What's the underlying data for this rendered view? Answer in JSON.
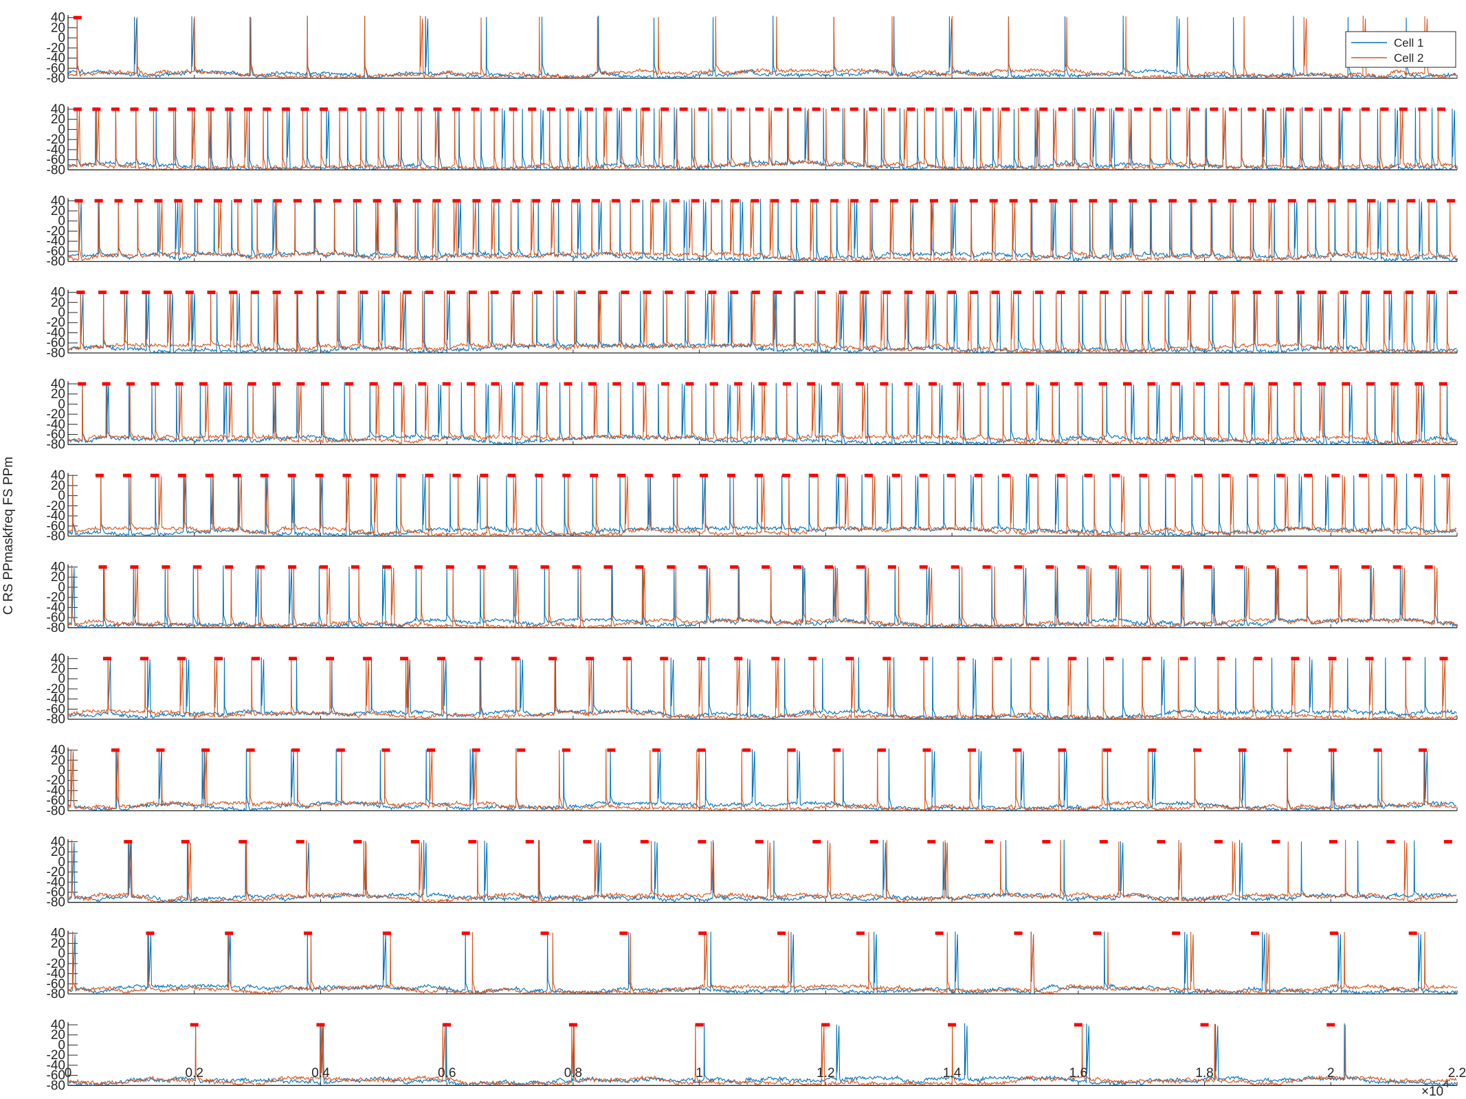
{
  "figure": {
    "ylabel": "C RS PPmaskfreq FS PPm",
    "x_exponent_label": "×10",
    "x_exponent_power": "4"
  },
  "chart_data": {
    "type": "line",
    "x_range": [
      0,
      22000
    ],
    "x_ticks": [
      0,
      2000,
      4000,
      6000,
      8000,
      10000,
      12000,
      14000,
      16000,
      18000,
      20000,
      22000
    ],
    "x_tick_labels": [
      "0",
      "0.2",
      "0.4",
      "0.6",
      "0.8",
      "1",
      "1.2",
      "1.4",
      "1.6",
      "1.8",
      "2",
      "2.2"
    ],
    "y_range": [
      -80,
      45
    ],
    "y_ticks": [
      -80,
      -60,
      -40,
      -20,
      0,
      20,
      40
    ],
    "y_tick_labels": [
      "-80",
      "-60",
      "-40",
      "-20",
      "0",
      "20",
      "40"
    ],
    "legend": {
      "placement": "top-right",
      "entries": [
        "Cell 1",
        "Cell 2"
      ]
    },
    "series": [
      {
        "name": "Cell 1",
        "color": "#0072BD"
      },
      {
        "name": "Cell 2",
        "color": "#D95319"
      }
    ],
    "mask_color": "#FF0000",
    "panels": [
      {
        "row": 1,
        "mask_freq": 0.01,
        "spike_period": 930,
        "mask_marks": [
          150
        ]
      },
      {
        "row": 2,
        "mask_freq": 3.5,
        "spike_period": 300,
        "mask_marks": [
          150,
          450,
          750,
          1050,
          1350,
          1650,
          1950,
          2250,
          2550,
          2850,
          3150,
          3450,
          3750,
          4050,
          4350,
          4650,
          4950,
          5250,
          5550,
          5850,
          6150,
          6450,
          6750,
          7050,
          7350,
          7650,
          7950,
          8250,
          8550,
          8850,
          9150,
          9450,
          9750,
          10050,
          10350,
          10650,
          10950,
          11250,
          11550,
          11850,
          12150,
          12450,
          12750,
          13050,
          13350,
          13650,
          13950,
          14250,
          14550,
          14850,
          15150,
          15450,
          15750,
          16050,
          16350,
          16650,
          16950,
          17250,
          17550,
          17850,
          18150,
          18450,
          18750,
          19050,
          19350,
          19650,
          19950,
          20250,
          20550,
          20850,
          21150,
          21450,
          21750
        ]
      },
      {
        "row": 3,
        "mask_freq": 3.2,
        "spike_period": 315,
        "mask_marks": [
          170,
          485,
          800,
          1115,
          1430,
          1745,
          2060,
          2375,
          2690,
          3005,
          3320,
          3635,
          3950,
          4265,
          4580,
          4895,
          5210,
          5525,
          5840,
          6155,
          6470,
          6785,
          7100,
          7415,
          7730,
          8045,
          8360,
          8675,
          8990,
          9305,
          9620,
          9935,
          10250,
          10565,
          10880,
          11195,
          11510,
          11825,
          12140,
          12455,
          12770,
          13085,
          13400,
          13715,
          14030,
          14345,
          14660,
          14975,
          15290,
          15605,
          15920,
          16235,
          16550,
          16865,
          17180,
          17495,
          17810,
          18125,
          18440,
          18755,
          19070,
          19385,
          19700,
          20015,
          20330,
          20645,
          20960,
          21275,
          21590,
          21905
        ]
      },
      {
        "row": 4,
        "mask_freq": 2.9,
        "spike_period": 345,
        "mask_marks": [
          200,
          545,
          890,
          1235,
          1580,
          1925,
          2270,
          2615,
          2960,
          3305,
          3650,
          3995,
          4340,
          4685,
          5030,
          5375,
          5720,
          6065,
          6410,
          6755,
          7100,
          7445,
          7790,
          8135,
          8480,
          8825,
          9170,
          9515,
          9860,
          10205,
          10550,
          10895,
          11240,
          11585,
          11930,
          12275,
          12620,
          12965,
          13310,
          13655,
          14000,
          14345,
          14690,
          15035,
          15380,
          15725,
          16070,
          16415,
          16760,
          17105,
          17450,
          17795,
          18140,
          18485,
          18830,
          19175,
          19520,
          19865,
          20210,
          20555,
          20900,
          21245,
          21590,
          21935
        ]
      },
      {
        "row": 5,
        "mask_freq": 2.6,
        "spike_period": 385,
        "mask_marks": [
          220,
          605,
          990,
          1375,
          1760,
          2145,
          2530,
          2915,
          3300,
          3685,
          4070,
          4455,
          4840,
          5225,
          5610,
          5995,
          6380,
          6765,
          7150,
          7535,
          7920,
          8305,
          8690,
          9075,
          9460,
          9845,
          10230,
          10615,
          11000,
          11385,
          11770,
          12155,
          12540,
          12925,
          13310,
          13695,
          14080,
          14465,
          14850,
          15235,
          15620,
          16005,
          16390,
          16775,
          17160,
          17545,
          17930,
          18315,
          18700,
          19085,
          19470,
          19855,
          20240,
          20625,
          21010,
          21395,
          21780
        ]
      },
      {
        "row": 6,
        "mask_freq": 2.3,
        "spike_period": 435,
        "mask_marks": [
          500,
          935,
          1370,
          1805,
          2240,
          2675,
          3110,
          3545,
          3980,
          4415,
          4850,
          5285,
          5720,
          6155,
          6590,
          7025,
          7460,
          7895,
          8330,
          8765,
          9200,
          9635,
          10070,
          10505,
          10940,
          11375,
          11810,
          12245,
          12680,
          13115,
          13550,
          13985,
          14420,
          14855,
          15290,
          15725,
          16160,
          16595,
          17030,
          17465,
          17900,
          18335,
          18770,
          19205,
          19640,
          20075,
          20510,
          20945,
          21380,
          21815
        ]
      },
      {
        "row": 7,
        "mask_freq": 2.0,
        "spike_period": 500,
        "mask_marks": [
          550,
          1050,
          1550,
          2050,
          2550,
          3050,
          3550,
          4050,
          4550,
          5050,
          5550,
          6050,
          6550,
          7050,
          7550,
          8050,
          8550,
          9050,
          9550,
          10050,
          10550,
          11050,
          11550,
          12050,
          12550,
          13050,
          13550,
          14050,
          14550,
          15050,
          15550,
          16050,
          16550,
          17050,
          17550,
          18050,
          18550,
          19050,
          19550,
          20050,
          20550,
          21050,
          21550
        ]
      },
      {
        "row": 8,
        "mask_freq": 1.7,
        "spike_period": 588,
        "mask_marks": [
          620,
          1208,
          1796,
          2384,
          2972,
          3560,
          4148,
          4736,
          5324,
          5912,
          6500,
          7088,
          7676,
          8264,
          8852,
          9440,
          10028,
          10616,
          11204,
          11792,
          12380,
          12968,
          13556,
          14144,
          14732,
          15320,
          15908,
          16496,
          17084,
          17672,
          18260,
          18848,
          19436,
          20024,
          20612,
          21200,
          21788
        ]
      },
      {
        "row": 9,
        "mask_freq": 1.4,
        "spike_period": 714,
        "mask_marks": [
          750,
          1464,
          2178,
          2892,
          3606,
          4320,
          5034,
          5748,
          6462,
          7176,
          7890,
          8604,
          9318,
          10032,
          10746,
          11460,
          12174,
          12888,
          13602,
          14316,
          15030,
          15744,
          16458,
          17172,
          17886,
          18600,
          19314,
          20028,
          20742,
          21456
        ]
      },
      {
        "row": 10,
        "mask_freq": 1.1,
        "spike_period": 909,
        "mask_marks": [
          950,
          1859,
          2768,
          3677,
          4586,
          5495,
          6404,
          7313,
          8222,
          9131,
          10040,
          10949,
          11858,
          12767,
          13676,
          14585,
          15494,
          16403,
          17312,
          18221,
          19130,
          20039,
          20948,
          21857
        ]
      },
      {
        "row": 11,
        "mask_freq": 0.8,
        "spike_period": 1250,
        "mask_marks": [
          1300,
          2550,
          3800,
          5050,
          6300,
          7550,
          8800,
          10050,
          11300,
          12550,
          13800,
          15050,
          16300,
          17550,
          18800,
          20050,
          21300
        ]
      },
      {
        "row": 12,
        "mask_freq": 0.5,
        "spike_period": 2000,
        "mask_marks": [
          2000,
          4000,
          6000,
          8000,
          10000,
          12000,
          14000,
          16000,
          18000,
          20000
        ]
      }
    ]
  }
}
